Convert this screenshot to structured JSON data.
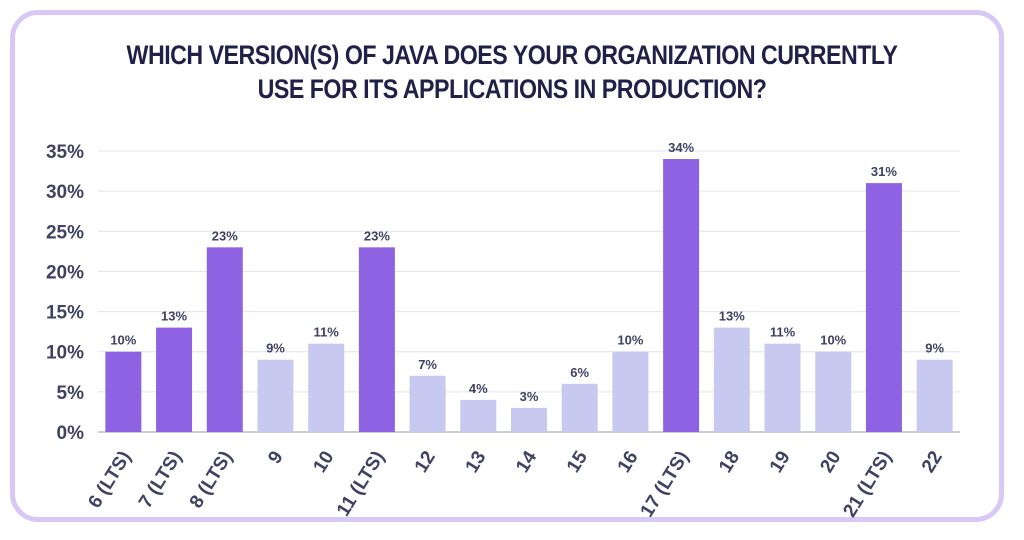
{
  "chart_data": {
    "type": "bar",
    "title_lines": [
      "WHICH VERSION(S) OF JAVA DOES YOUR ORGANIZATION CURRENTLY",
      "USE FOR ITS APPLICATIONS IN PRODUCTION?"
    ],
    "categories": [
      "6 (LTS)",
      "7 (LTS)",
      "8 (LTS)",
      "9",
      "10",
      "11 (LTS)",
      "12",
      "13",
      "14",
      "15",
      "16",
      "17 (LTS)",
      "18",
      "19",
      "20",
      "21 (LTS)",
      "22"
    ],
    "values": [
      10,
      13,
      23,
      9,
      11,
      23,
      7,
      4,
      3,
      6,
      10,
      34,
      13,
      11,
      10,
      31,
      9
    ],
    "data_labels": [
      "10%",
      "13%",
      "23%",
      "9%",
      "11%",
      "23%",
      "7%",
      "4%",
      "3%",
      "6%",
      "10%",
      "34%",
      "13%",
      "11%",
      "10%",
      "31%",
      "9%"
    ],
    "y_ticks": [
      "0%",
      "5%",
      "10%",
      "15%",
      "20%",
      "25%",
      "30%",
      "35%"
    ],
    "ylim": [
      0,
      35
    ],
    "grid": true,
    "colors": {
      "lts": "#8e63e3",
      "non_lts": "#c8c9f0",
      "text": "#3e4263",
      "title": "#1f2148",
      "grid": "#e2e3ea",
      "border": "#d7c8f5"
    }
  }
}
